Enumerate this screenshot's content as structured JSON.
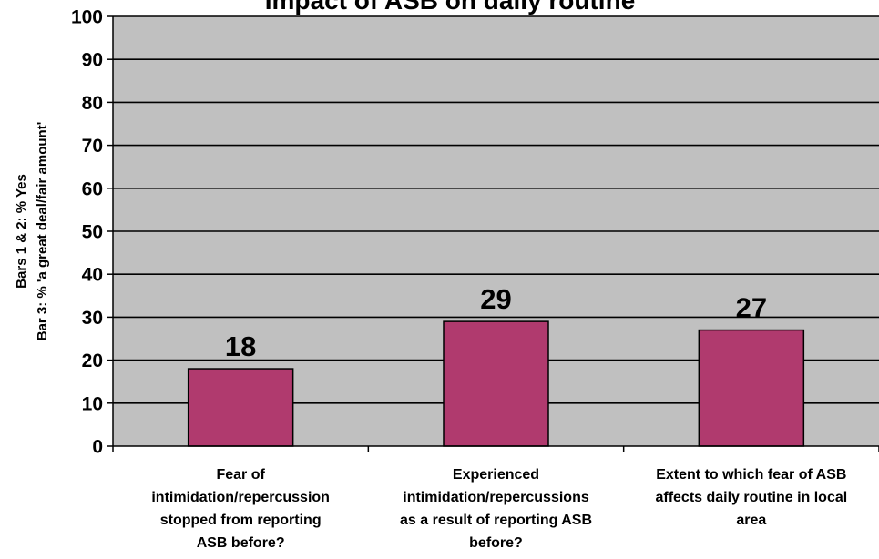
{
  "chart_data": {
    "type": "bar",
    "title": "Impact of ASB on daily routine",
    "ylabel_lines": [
      "Bars 1 & 2: % Yes",
      "Bar 3: % 'a great deal/fair amount'"
    ],
    "xlabel": "",
    "categories": [
      [
        "Fear of",
        "intimidation/repercussion",
        "stopped from reporting",
        "ASB before?"
      ],
      [
        "Experienced",
        "intimidation/repercussions",
        "as a result of reporting ASB",
        "before?"
      ],
      [
        "Extent to which fear of ASB",
        "affects daily routine in local",
        "area"
      ]
    ],
    "values": [
      18,
      29,
      27
    ],
    "data_labels": [
      "18",
      "29",
      "27"
    ],
    "ylim": [
      0,
      100
    ],
    "yticks": [
      0,
      10,
      20,
      30,
      40,
      50,
      60,
      70,
      80,
      90,
      100
    ],
    "grid": true,
    "legend": "none",
    "colors": {
      "bar": "#b03a6e",
      "plot_background": "#c0c0c0",
      "gridline": "#000000",
      "axis": "#000000"
    }
  }
}
